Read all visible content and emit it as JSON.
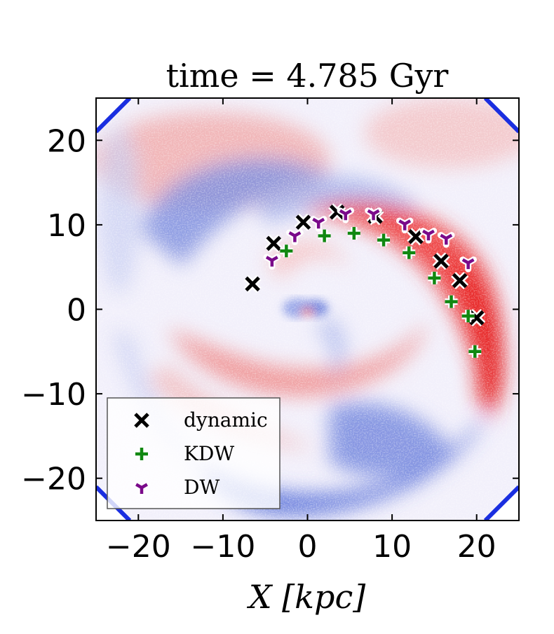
{
  "chart_data": {
    "type": "scatter",
    "title": "time = 4.785 Gyr",
    "xlabel": "X [kpc]",
    "ylabel": "",
    "xlim": [
      -25,
      25
    ],
    "ylim": [
      -25,
      25
    ],
    "xticks": [
      -20,
      -10,
      0,
      10,
      20
    ],
    "yticks": [
      -20,
      -10,
      0,
      10,
      20
    ],
    "xtick_labels": [
      "−20",
      "−10",
      "0",
      "10",
      "20"
    ],
    "ytick_labels": [
      "−20",
      "−10",
      "0",
      "10",
      "20"
    ],
    "background": "residual density map (blue negative, red positive, white zero) with two-armed spiral pattern",
    "legend": {
      "placement": "lower-left",
      "entries": [
        "dynamic",
        "KDW",
        "DW"
      ]
    },
    "series": [
      {
        "name": "dynamic",
        "marker": "x",
        "color": "#000000",
        "points": [
          [
            -6.5,
            3.0
          ],
          [
            -4.0,
            7.8
          ],
          [
            -0.5,
            10.3
          ],
          [
            3.5,
            11.5
          ],
          [
            8.0,
            11.0
          ],
          [
            12.8,
            8.6
          ],
          [
            15.8,
            5.7
          ],
          [
            18.0,
            3.4
          ],
          [
            20.0,
            -1.0
          ]
        ]
      },
      {
        "name": "KDW",
        "marker": "+",
        "color": "#118811",
        "points": [
          [
            -2.5,
            6.9
          ],
          [
            2.0,
            8.7
          ],
          [
            5.5,
            9.0
          ],
          [
            9.0,
            8.2
          ],
          [
            12.0,
            6.7
          ],
          [
            15.0,
            3.7
          ],
          [
            17.0,
            0.9
          ],
          [
            19.0,
            -0.8
          ],
          [
            19.8,
            -5.0
          ]
        ]
      },
      {
        "name": "DW",
        "marker": "tri_down",
        "color": "#7a0a8a",
        "points": [
          [
            -4.2,
            5.8
          ],
          [
            -1.5,
            8.7
          ],
          [
            1.3,
            10.3
          ],
          [
            4.5,
            11.3
          ],
          [
            7.8,
            11.3
          ],
          [
            11.5,
            10.1
          ],
          [
            14.3,
            8.9
          ],
          [
            16.4,
            8.4
          ],
          [
            19.0,
            5.5
          ]
        ]
      }
    ]
  }
}
